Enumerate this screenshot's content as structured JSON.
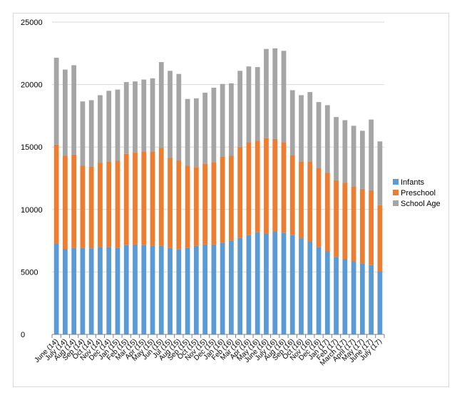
{
  "chart_data": {
    "type": "bar",
    "stacked": true,
    "categories": [
      "June (14)",
      "July (14)",
      "Aug (14)",
      "Sep (14)",
      "Oct (14)",
      "Nov (14)",
      "Dec (14)",
      "Jan (15)",
      "Feb (15)",
      "Mar (15)",
      "Apr (15)",
      "May (15)",
      "Jun (15)",
      "Jul (15)",
      "Aug (15)",
      "Sep (15)",
      "Oct (15)",
      "Nov (15)",
      "Dec (15)",
      "Jan (16)",
      "Feb (16)",
      "Mar (16)",
      "Apr (16)",
      "May (16)",
      "June (16)",
      "July (16)",
      "Aug (16)",
      "Sep (16)",
      "Oct (16)",
      "Nov (16)",
      "Dec (16)",
      "Jan (17)",
      "Feb (17)",
      "March (17)",
      "April (17)",
      "May (17)",
      "June (17)",
      "July (17)"
    ],
    "series": [
      {
        "name": "Infants",
        "color": "#5b9bd5",
        "values": [
          7300,
          6850,
          6950,
          6950,
          6900,
          7000,
          7000,
          6950,
          7150,
          7200,
          7150,
          7100,
          7100,
          6950,
          6800,
          6950,
          7100,
          7200,
          7200,
          7350,
          7500,
          7750,
          7950,
          8200,
          8100,
          8250,
          8150,
          7950,
          7700,
          7450,
          7000,
          6650,
          6200,
          6050,
          5850,
          5700,
          5550,
          5050
        ]
      },
      {
        "name": "Preschool",
        "color": "#ed7d31",
        "values": [
          7900,
          7450,
          7450,
          6550,
          6550,
          6750,
          6850,
          6950,
          7300,
          7350,
          7500,
          7550,
          7850,
          7200,
          7150,
          6550,
          6300,
          6450,
          6600,
          6900,
          6800,
          7250,
          7450,
          7300,
          7600,
          7400,
          7250,
          6400,
          6150,
          6400,
          6300,
          6300,
          6150,
          6100,
          6000,
          5950,
          6000,
          5300
        ]
      },
      {
        "name": "School Age",
        "color": "#a5a5a5",
        "values": [
          6950,
          6900,
          7150,
          5150,
          5300,
          5400,
          5650,
          5700,
          5750,
          5700,
          5750,
          5850,
          6850,
          6950,
          6900,
          5350,
          5500,
          5700,
          5950,
          5800,
          5800,
          6100,
          6050,
          5900,
          7150,
          7250,
          7300,
          5200,
          5300,
          5550,
          5300,
          5400,
          5050,
          5000,
          4850,
          4650,
          5650,
          5100
        ]
      }
    ],
    "ylim": [
      0,
      25000
    ],
    "yticks": [
      "0",
      "5000",
      "10000",
      "15000",
      "20000",
      "25000"
    ],
    "grid": true,
    "legend_position": "right"
  }
}
